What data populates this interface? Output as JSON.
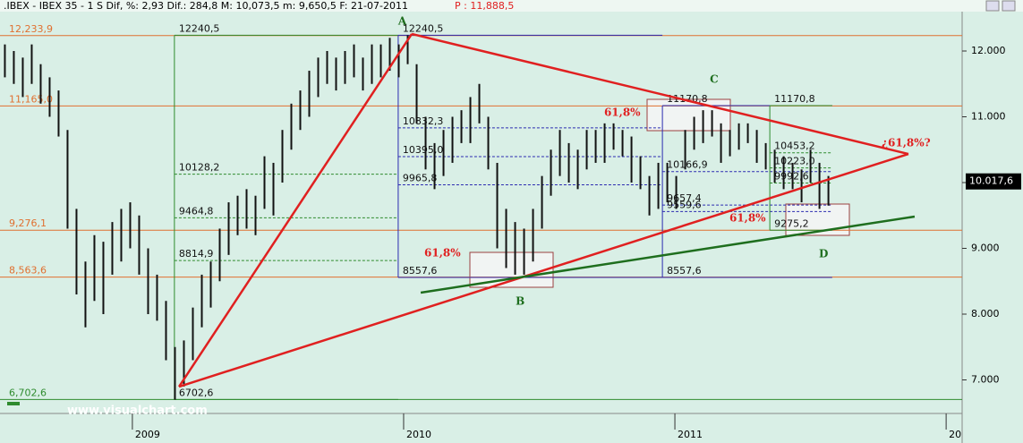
{
  "header": {
    "title": ".IBEX - IBEX 35 - 1 S Dif, %: 2,93 Dif.: 284,8 M: 10,073,5 m: 9,650,5 F: 21-07-2011",
    "last_text": "P : 11,888,5"
  },
  "watermark": "www.visualchart.com",
  "chart_data": {
    "type": "ohlc",
    "xlim": [
      2008.512,
      2012.059
    ],
    "ylim": [
      6490,
      12585
    ],
    "xticks": [
      2009,
      2010,
      2011,
      {
        "value": 2012,
        "label": "20"
      }
    ],
    "yticks": [
      {
        "value": 12000,
        "label": "12.000"
      },
      {
        "value": 11000,
        "label": "11.000"
      },
      {
        "value": 10000,
        "label": "10.000"
      },
      {
        "value": 9000,
        "label": "9.000"
      },
      {
        "value": 8000,
        "label": "8.000"
      },
      {
        "value": 7000,
        "label": "7.000"
      }
    ],
    "last_price": {
      "value": 10017.6,
      "label": "10.017,6"
    },
    "bar_color": "#111111",
    "x": [
      2008.53,
      2008.563,
      2008.596,
      2008.629,
      2008.662,
      2008.695,
      2008.728,
      2008.761,
      2008.794,
      2008.827,
      2008.86,
      2008.893,
      2008.926,
      2008.959,
      2008.992,
      2009.025,
      2009.058,
      2009.091,
      2009.124,
      2009.157,
      2009.19,
      2009.223,
      2009.256,
      2009.289,
      2009.322,
      2009.355,
      2009.388,
      2009.421,
      2009.454,
      2009.487,
      2009.52,
      2009.553,
      2009.586,
      2009.619,
      2009.652,
      2009.685,
      2009.718,
      2009.751,
      2009.784,
      2009.817,
      2009.85,
      2009.883,
      2009.916,
      2009.949,
      2009.982,
      2010.015,
      2010.048,
      2010.081,
      2010.114,
      2010.147,
      2010.18,
      2010.213,
      2010.246,
      2010.279,
      2010.312,
      2010.345,
      2010.378,
      2010.411,
      2010.444,
      2010.477,
      2010.51,
      2010.543,
      2010.576,
      2010.609,
      2010.642,
      2010.675,
      2010.708,
      2010.741,
      2010.774,
      2010.807,
      2010.84,
      2010.873,
      2010.906,
      2010.939,
      2010.972,
      2011.005,
      2011.038,
      2011.071,
      2011.104,
      2011.137,
      2011.17,
      2011.203,
      2011.236,
      2011.269,
      2011.302,
      2011.335,
      2011.368,
      2011.401,
      2011.434,
      2011.467,
      2011.5,
      2011.533,
      2011.566
    ],
    "high": [
      12100,
      12000,
      11900,
      12100,
      11800,
      11600,
      11400,
      10800,
      9600,
      8800,
      9200,
      9100,
      9400,
      9600,
      9700,
      9500,
      9000,
      8600,
      8200,
      7500,
      7600,
      8100,
      8600,
      8800,
      9300,
      9700,
      9800,
      9900,
      9800,
      10400,
      10300,
      10800,
      11200,
      11400,
      11700,
      11900,
      12000,
      11900,
      12000,
      12100,
      11900,
      12100,
      12100,
      12200,
      12100,
      12240,
      11800,
      11000,
      10600,
      10800,
      11000,
      11100,
      11300,
      11500,
      11000,
      10300,
      9600,
      9400,
      9300,
      9600,
      10100,
      10500,
      10800,
      10600,
      10500,
      10800,
      10800,
      10900,
      10900,
      10800,
      10700,
      10400,
      10100,
      10300,
      10300,
      10100,
      10800,
      11000,
      11100,
      11100,
      10900,
      10800,
      10900,
      10900,
      10800,
      10600,
      10500,
      10400,
      10300,
      10200,
      10500,
      10300,
      10100
    ],
    "low": [
      11600,
      11500,
      11300,
      11500,
      11200,
      11000,
      10700,
      9300,
      8300,
      7800,
      8200,
      8000,
      8600,
      8800,
      9000,
      8600,
      8000,
      7900,
      7300,
      6700,
      6900,
      7300,
      7800,
      8100,
      8500,
      8900,
      9200,
      9300,
      9200,
      9600,
      9500,
      10000,
      10500,
      10800,
      11000,
      11300,
      11500,
      11400,
      11500,
      11600,
      11400,
      11500,
      11600,
      11700,
      11600,
      11800,
      10900,
      10200,
      9900,
      10100,
      10300,
      10600,
      10600,
      10900,
      10200,
      9000,
      8700,
      8600,
      8600,
      8800,
      9300,
      9800,
      10100,
      10000,
      9900,
      10200,
      10300,
      10300,
      10500,
      10400,
      10000,
      9900,
      9500,
      9600,
      9700,
      9600,
      10200,
      10500,
      10600,
      10700,
      10300,
      10400,
      10500,
      10600,
      10300,
      10200,
      10000,
      9900,
      9900,
      9700,
      10000,
      9600,
      9650
    ],
    "hlines": [
      {
        "value": 12233.9,
        "label": "12,233,9",
        "color": "#e07030"
      },
      {
        "value": 11165.0,
        "label": "11,165,0",
        "color": "#e07030"
      },
      {
        "value": 9276.1,
        "label": "9,276,1",
        "color": "#e07030"
      },
      {
        "value": 8563.6,
        "label": "8,563,6",
        "color": "#e07030"
      },
      {
        "value": 6702.6,
        "label": "6,702,6",
        "color": "#2e8b2e"
      }
    ],
    "fib_groups": [
      {
        "color": "#2e8b2e",
        "x0": 2009.155,
        "x1": 2009.98,
        "levels": [
          {
            "value": 12240.5,
            "label": "12240,5"
          },
          {
            "value": 10128.2,
            "label": "10128,2"
          },
          {
            "value": 9464.8,
            "label": "9464,8"
          },
          {
            "value": 8814.9,
            "label": "8814,9"
          },
          {
            "value": 6702.6,
            "label": "6702,6"
          }
        ]
      },
      {
        "color": "#2a2ab0",
        "x0": 2009.98,
        "x1": 2010.954,
        "levels": [
          {
            "value": 12240.5,
            "label": "12240,5"
          },
          {
            "value": 10832.3,
            "label": "10832,3"
          },
          {
            "value": 10395.0,
            "label": "10395,0"
          },
          {
            "value": 9965.8,
            "label": "9965,8"
          },
          {
            "value": 8557.6,
            "label": "8557,6"
          }
        ]
      },
      {
        "color": "#2a2ab0",
        "x0": 2010.954,
        "x1": 2011.58,
        "levels": [
          {
            "value": 11170.8,
            "label": "11170,8"
          },
          {
            "value": 10166.9,
            "label": "10166,9"
          },
          {
            "value": 9657.4,
            "label": "9657,4"
          },
          {
            "value": 9559.6,
            "label": "9559,6"
          },
          {
            "value": 8557.6,
            "label": "8557,6"
          }
        ]
      },
      {
        "color": "#2e8b2e",
        "x0": 2011.35,
        "x1": 2011.58,
        "levels": [
          {
            "value": 11170.8,
            "label": "11170,8"
          },
          {
            "value": 10453.2,
            "label": "10453,2"
          },
          {
            "value": 10223.0,
            "label": "10223,0"
          },
          {
            "value": 9992.6,
            "label": "9992,6"
          },
          {
            "value": 9275.2,
            "label": "9275,2"
          }
        ]
      }
    ],
    "trendlines": [
      {
        "color": "#e02020",
        "x": [
          2009.172,
          2010.03
        ],
        "y": [
          6898,
          12259
        ]
      },
      {
        "color": "#e02020",
        "x": [
          2010.03,
          2011.861
        ],
        "y": [
          12259,
          10435
        ]
      },
      {
        "color": "#e02020",
        "x": [
          2009.172,
          2011.861
        ],
        "y": [
          6898,
          10435
        ]
      },
      {
        "color": "#1e6e1e",
        "x": [
          2010.063,
          2011.884
        ],
        "y": [
          8327,
          9483
        ]
      }
    ],
    "annotations": [
      {
        "text": "A",
        "x": 2009.98,
        "y": 12449,
        "color": "#1e6e1e"
      },
      {
        "text": "B",
        "x": 2010.413,
        "y": 8192,
        "color": "#1e6e1e"
      },
      {
        "text": "C",
        "x": 2011.129,
        "y": 11565,
        "color": "#1e6e1e"
      },
      {
        "text": "D",
        "x": 2011.531,
        "y": 8913,
        "color": "#1e6e1e"
      },
      {
        "text": "61,8%",
        "x": 2010.739,
        "y": 11062,
        "color": "#e02020"
      },
      {
        "text": "61,8%",
        "x": 2010.076,
        "y": 8926,
        "color": "#e02020"
      },
      {
        "text": "61,8%",
        "x": 2011.201,
        "y": 9457,
        "color": "#e02020"
      },
      {
        "text": "¿61,8%?",
        "x": 2011.762,
        "y": 10599,
        "color": "#e02020"
      }
    ]
  }
}
